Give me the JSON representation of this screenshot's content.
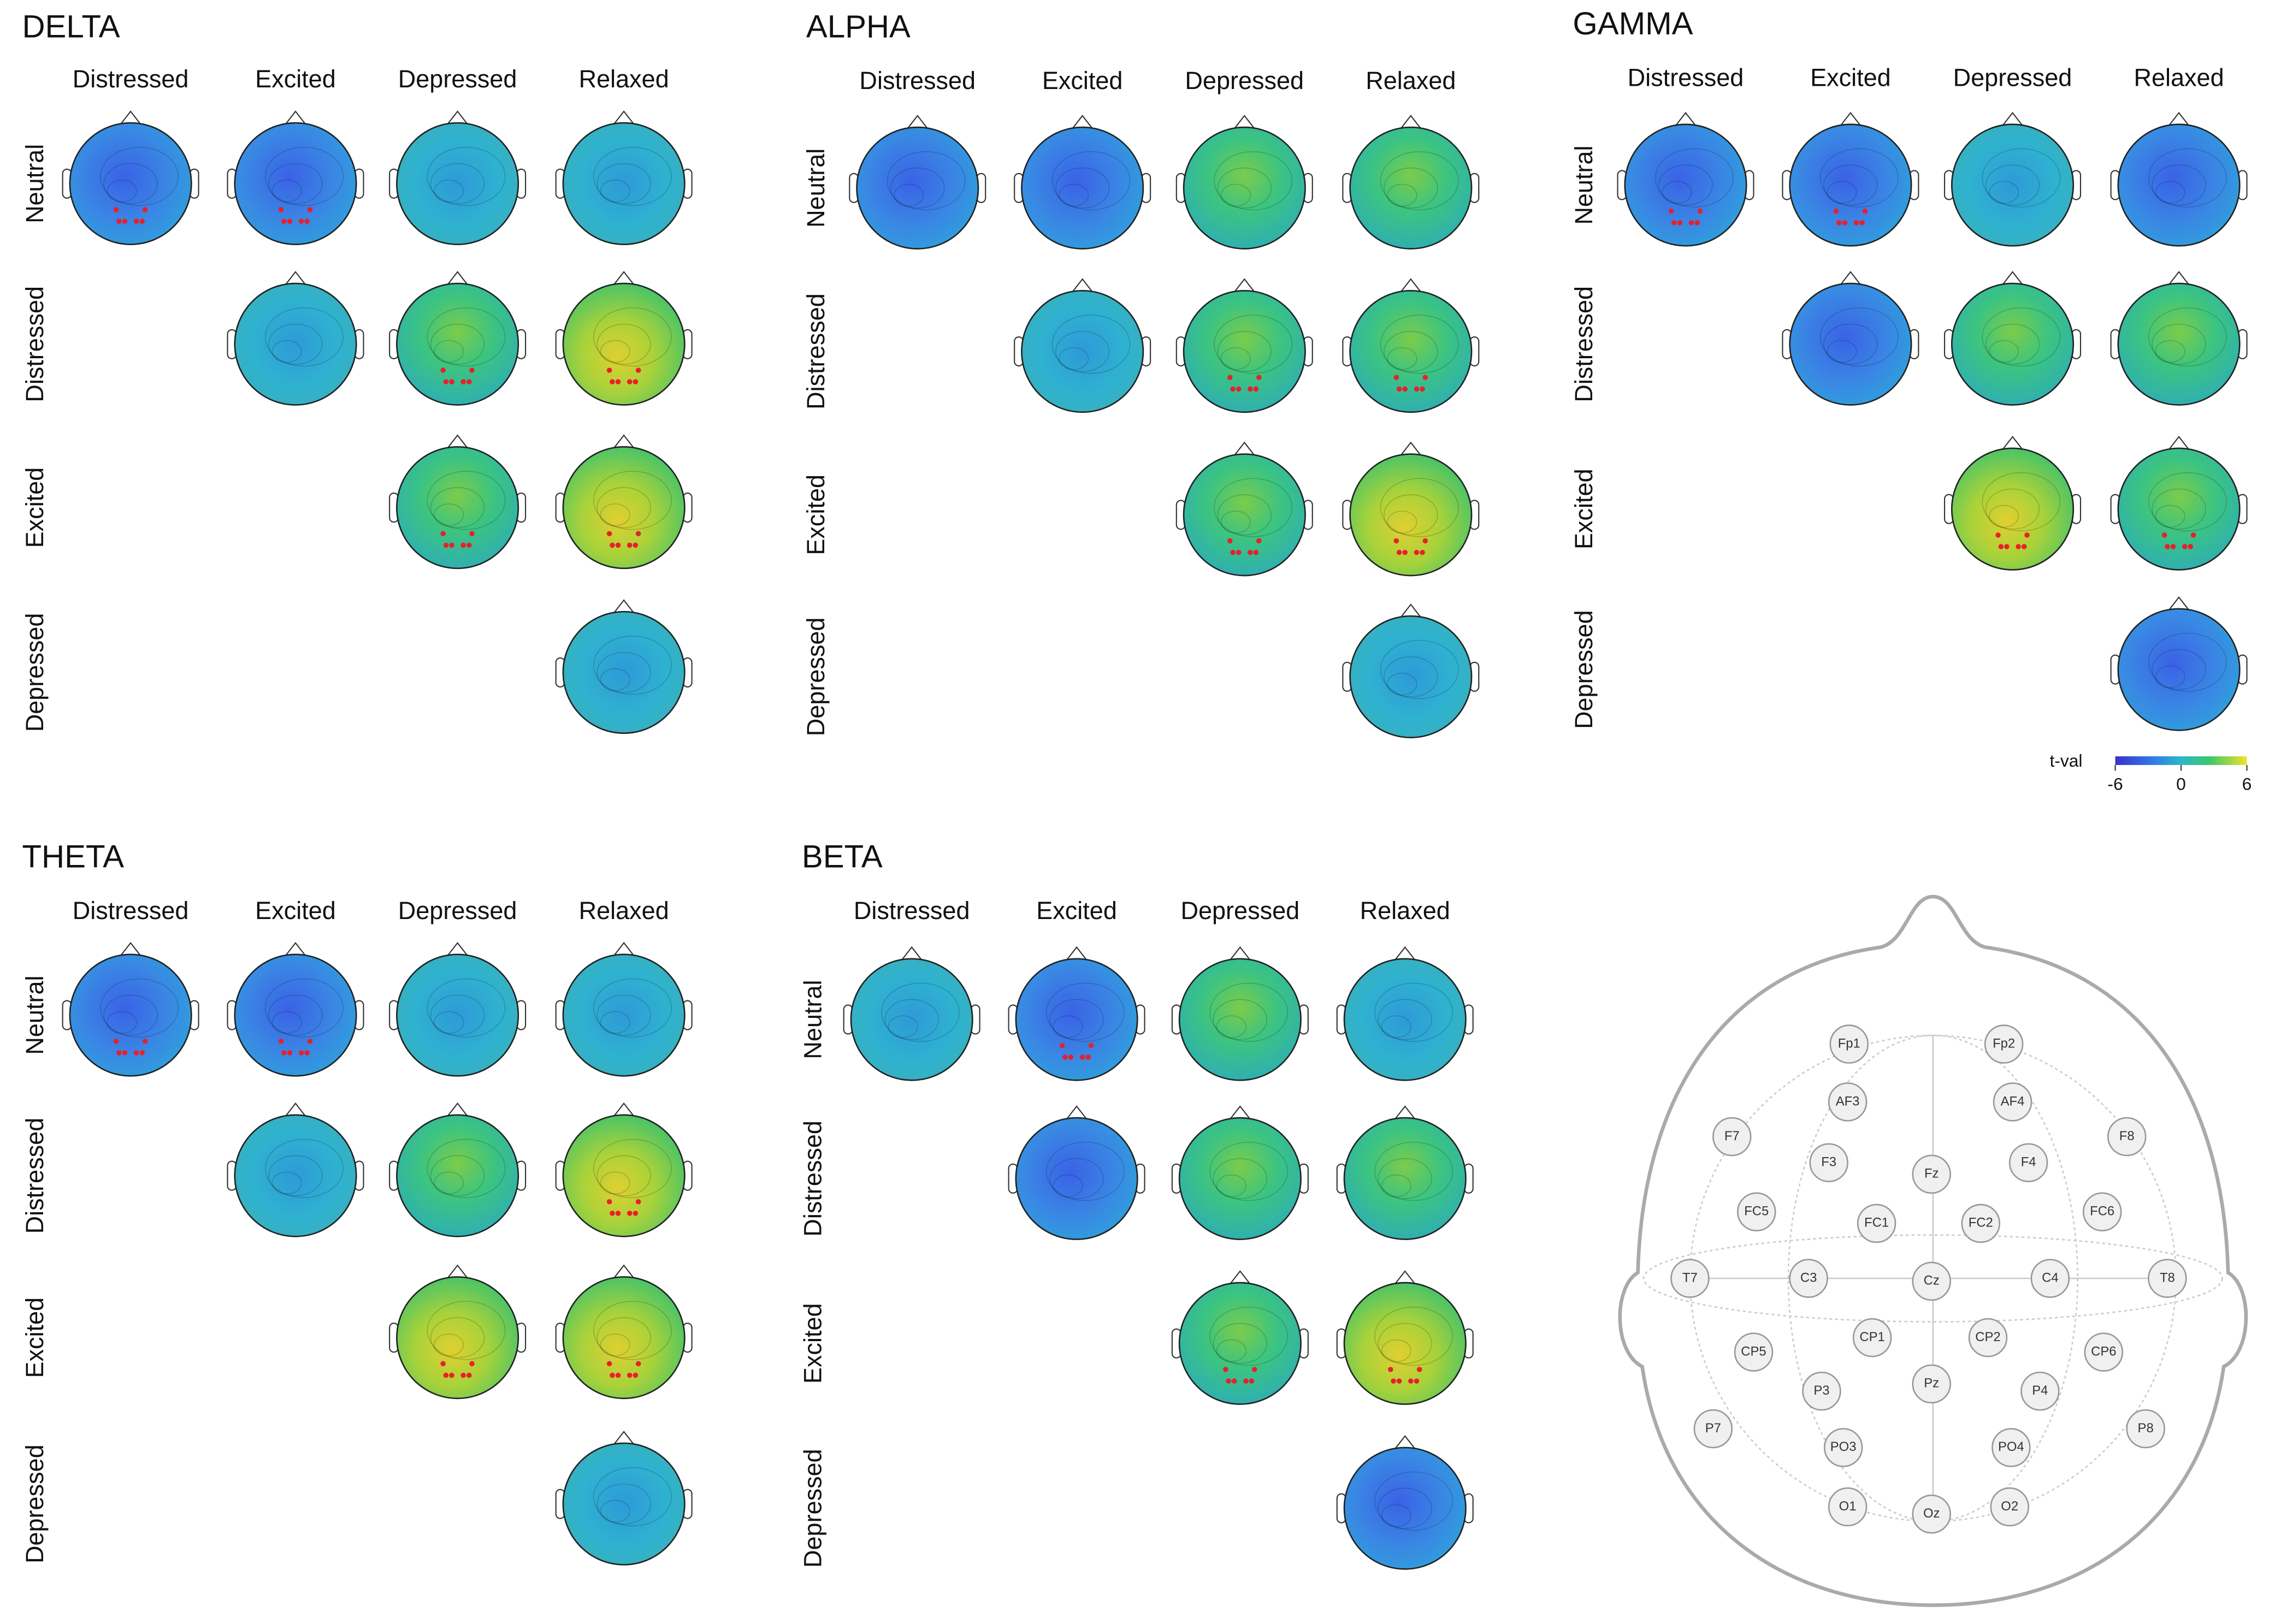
{
  "panels": [
    {
      "title": "DELTA",
      "columns": [
        "Distressed",
        "Excited",
        "Depressed",
        "Relaxed"
      ],
      "rows": [
        "Neutral",
        "Distressed",
        "Excited",
        "Depressed"
      ]
    },
    {
      "title": "ALPHA",
      "columns": [
        "Distressed",
        "Excited",
        "Depressed",
        "Relaxed"
      ],
      "rows": [
        "Neutral",
        "Distressed",
        "Excited",
        "Depressed"
      ]
    },
    {
      "title": "GAMMA",
      "columns": [
        "Distressed",
        "Excited",
        "Depressed",
        "Relaxed"
      ],
      "rows": [
        "Neutral",
        "Distressed",
        "Excited",
        "Depressed"
      ]
    },
    {
      "title": "THETA",
      "columns": [
        "Distressed",
        "Excited",
        "Depressed",
        "Relaxed"
      ],
      "rows": [
        "Neutral",
        "Distressed",
        "Excited",
        "Depressed"
      ]
    },
    {
      "title": "BETA",
      "columns": [
        "Distressed",
        "Excited",
        "Depressed",
        "Relaxed"
      ],
      "rows": [
        "Neutral",
        "Distressed",
        "Excited",
        "Depressed"
      ]
    }
  ],
  "colorbar": {
    "label": "t-val",
    "lim": [
      -6,
      6
    ],
    "ticks": [
      -6,
      0,
      6
    ]
  },
  "electrodes": [
    "Fp1",
    "Fp2",
    "AF3",
    "AF4",
    "F7",
    "F8",
    "F3",
    "Fz",
    "F4",
    "FC5",
    "FC1",
    "FC2",
    "FC6",
    "T7",
    "C3",
    "Cz",
    "C4",
    "T8",
    "CP5",
    "CP1",
    "CP2",
    "CP6",
    "P3",
    "Pz",
    "P4",
    "P7",
    "P8",
    "PO3",
    "PO4",
    "O1",
    "Oz",
    "O2"
  ]
}
